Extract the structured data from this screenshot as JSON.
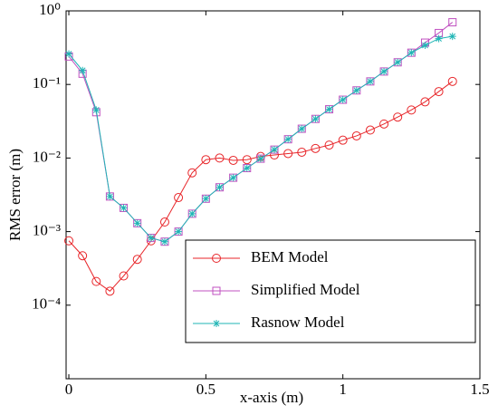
{
  "chart_data": {
    "type": "line",
    "xlabel": "x-axis (m)",
    "ylabel": "RMS error (m)",
    "yscale": "log",
    "xlim": [
      -0.01,
      1.5
    ],
    "xticks": [
      0,
      0.5,
      1,
      1.5
    ],
    "ylim": [
      1e-05,
      1
    ],
    "yticks": [
      {
        "value": 0.0001,
        "label": "10⁻⁴"
      },
      {
        "value": 0.001,
        "label": "10⁻³"
      },
      {
        "value": 0.01,
        "label": "10⁻²"
      },
      {
        "value": 0.1,
        "label": "10⁻¹"
      },
      {
        "value": 1,
        "label": "10⁰"
      }
    ],
    "legend": "lower right",
    "x": [
      0,
      0.05,
      0.1,
      0.15,
      0.2,
      0.25,
      0.3,
      0.35,
      0.4,
      0.45,
      0.5,
      0.55,
      0.6,
      0.65,
      0.7,
      0.75,
      0.8,
      0.85,
      0.9,
      0.95,
      1.0,
      1.05,
      1.1,
      1.15,
      1.2,
      1.25,
      1.3,
      1.35,
      1.4
    ],
    "series": [
      {
        "name": "BEM Model",
        "color": "#e8262a",
        "marker": "circle",
        "values": [
          0.00075,
          0.00047,
          0.00021,
          0.000155,
          0.00025,
          0.00042,
          0.00075,
          0.00135,
          0.0029,
          0.0063,
          0.0095,
          0.01,
          0.0093,
          0.0095,
          0.0105,
          0.011,
          0.0115,
          0.012,
          0.0135,
          0.015,
          0.0175,
          0.02,
          0.024,
          0.029,
          0.036,
          0.045,
          0.058,
          0.08,
          0.11
        ]
      },
      {
        "name": "Simplified Model",
        "color": "#c050c0",
        "marker": "square",
        "values": [
          0.24,
          0.14,
          0.042,
          0.003,
          0.0021,
          0.0013,
          0.00082,
          0.00073,
          0.001,
          0.00175,
          0.0028,
          0.004,
          0.0054,
          0.0073,
          0.0098,
          0.013,
          0.018,
          0.025,
          0.034,
          0.046,
          0.062,
          0.083,
          0.11,
          0.15,
          0.2,
          0.27,
          0.37,
          0.5,
          0.7
        ]
      },
      {
        "name": "Rasnow Model",
        "color": "#1fb5b5",
        "marker": "star",
        "values": [
          0.26,
          0.155,
          0.045,
          0.003,
          0.0021,
          0.0013,
          0.00082,
          0.00073,
          0.001,
          0.00175,
          0.0028,
          0.004,
          0.0054,
          0.0073,
          0.0098,
          0.013,
          0.018,
          0.025,
          0.034,
          0.046,
          0.062,
          0.083,
          0.11,
          0.15,
          0.2,
          0.27,
          0.34,
          0.42,
          0.45
        ]
      }
    ]
  }
}
